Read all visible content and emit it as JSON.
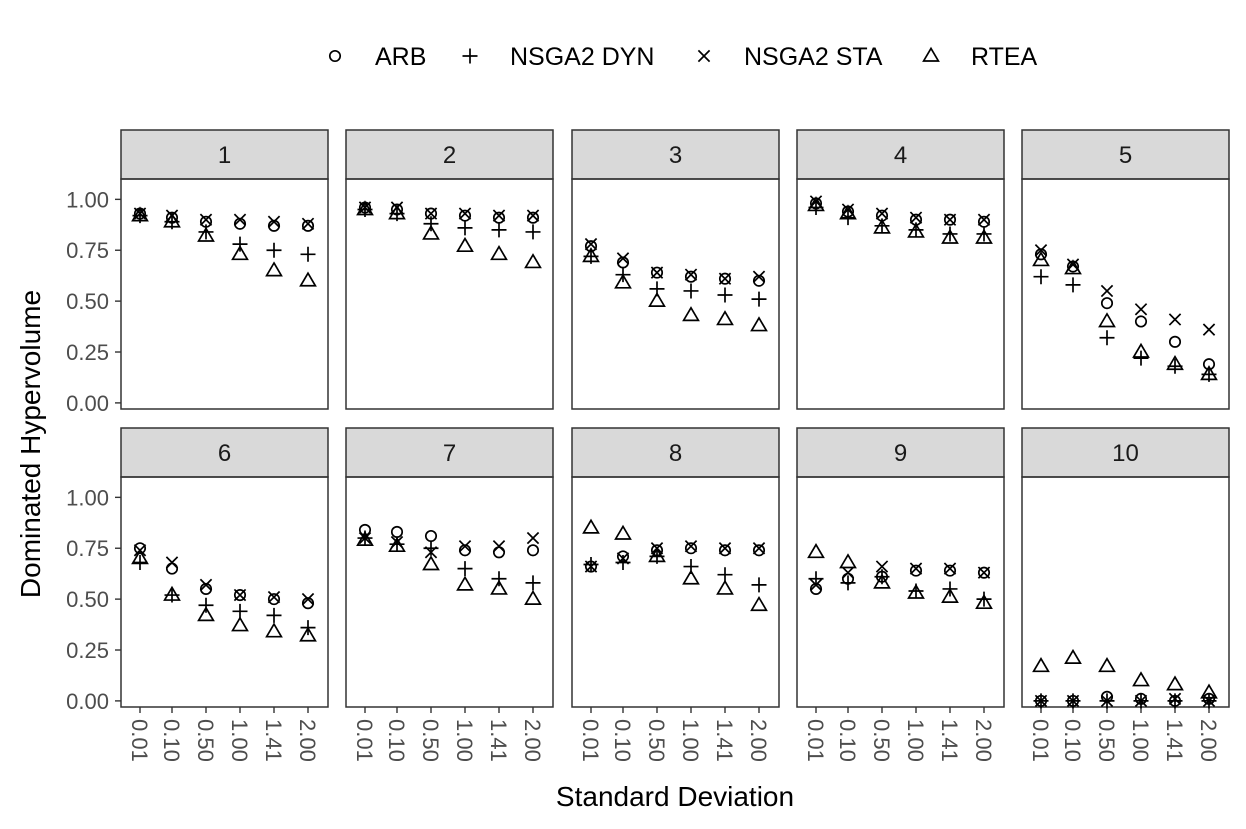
{
  "chart_data": {
    "type": "scatter",
    "facet_type": "small-multiples",
    "xlabel": "Standard Deviation",
    "ylabel": "Dominated Hypervolume",
    "categories": [
      "0.01",
      "0.10",
      "0.50",
      "1.00",
      "1.41",
      "2.00"
    ],
    "ylim": [
      -0.03,
      1.1
    ],
    "yticks": [
      "0.00",
      "0.25",
      "0.50",
      "0.75",
      "1.00"
    ],
    "legend_position": "top",
    "grid": false,
    "legend": [
      {
        "key": "ARB",
        "label": "ARB",
        "marker": "circle"
      },
      {
        "key": "NSGA2_DYN",
        "label": "NSGA2 DYN",
        "marker": "plus"
      },
      {
        "key": "NSGA2_STA",
        "label": "NSGA2 STA",
        "marker": "cross"
      },
      {
        "key": "RTEA",
        "label": "RTEA",
        "marker": "triangle"
      }
    ],
    "panels": [
      {
        "label": "1",
        "series": {
          "ARB": [
            0.93,
            0.91,
            0.89,
            0.88,
            0.87,
            0.87
          ],
          "NSGA2_DYN": [
            0.92,
            0.89,
            0.84,
            0.78,
            0.75,
            0.73
          ],
          "NSGA2_STA": [
            0.93,
            0.92,
            0.9,
            0.9,
            0.89,
            0.88
          ],
          "RTEA": [
            0.92,
            0.89,
            0.82,
            0.73,
            0.65,
            0.6
          ]
        }
      },
      {
        "label": "2",
        "series": {
          "ARB": [
            0.96,
            0.95,
            0.93,
            0.92,
            0.91,
            0.91
          ],
          "NSGA2_DYN": [
            0.95,
            0.93,
            0.88,
            0.86,
            0.85,
            0.84
          ],
          "NSGA2_STA": [
            0.96,
            0.96,
            0.93,
            0.93,
            0.92,
            0.92
          ],
          "RTEA": [
            0.95,
            0.93,
            0.83,
            0.77,
            0.73,
            0.69
          ]
        }
      },
      {
        "label": "3",
        "series": {
          "ARB": [
            0.77,
            0.69,
            0.64,
            0.62,
            0.61,
            0.6
          ],
          "NSGA2_DYN": [
            0.72,
            0.63,
            0.56,
            0.55,
            0.53,
            0.51
          ],
          "NSGA2_STA": [
            0.78,
            0.71,
            0.64,
            0.63,
            0.61,
            0.62
          ],
          "RTEA": [
            0.72,
            0.59,
            0.5,
            0.43,
            0.41,
            0.38
          ]
        }
      },
      {
        "label": "4",
        "series": {
          "ARB": [
            0.98,
            0.94,
            0.92,
            0.9,
            0.9,
            0.89
          ],
          "NSGA2_DYN": [
            0.96,
            0.91,
            0.87,
            0.85,
            0.83,
            0.83
          ],
          "NSGA2_STA": [
            0.99,
            0.95,
            0.93,
            0.91,
            0.9,
            0.9
          ],
          "RTEA": [
            0.97,
            0.93,
            0.86,
            0.84,
            0.81,
            0.81
          ]
        }
      },
      {
        "label": "5",
        "series": {
          "ARB": [
            0.73,
            0.67,
            0.49,
            0.4,
            0.3,
            0.19
          ],
          "NSGA2_DYN": [
            0.62,
            0.58,
            0.32,
            0.22,
            0.18,
            0.14
          ],
          "NSGA2_STA": [
            0.75,
            0.68,
            0.55,
            0.46,
            0.41,
            0.36
          ],
          "RTEA": [
            0.7,
            0.66,
            0.4,
            0.25,
            0.19,
            0.14
          ]
        }
      },
      {
        "label": "6",
        "series": {
          "ARB": [
            0.75,
            0.65,
            0.55,
            0.52,
            0.5,
            0.48
          ],
          "NSGA2_DYN": [
            0.68,
            0.52,
            0.47,
            0.44,
            0.42,
            0.36
          ],
          "NSGA2_STA": [
            0.74,
            0.68,
            0.57,
            0.52,
            0.51,
            0.5
          ],
          "RTEA": [
            0.7,
            0.52,
            0.42,
            0.37,
            0.34,
            0.32
          ]
        }
      },
      {
        "label": "7",
        "series": {
          "ARB": [
            0.84,
            0.83,
            0.81,
            0.74,
            0.73,
            0.74
          ],
          "NSGA2_DYN": [
            0.8,
            0.77,
            0.75,
            0.65,
            0.6,
            0.58
          ],
          "NSGA2_STA": [
            0.8,
            0.78,
            0.73,
            0.76,
            0.76,
            0.8
          ],
          "RTEA": [
            0.79,
            0.76,
            0.67,
            0.57,
            0.55,
            0.5
          ]
        }
      },
      {
        "label": "8",
        "series": {
          "ARB": [
            0.66,
            0.71,
            0.74,
            0.75,
            0.74,
            0.74
          ],
          "NSGA2_DYN": [
            0.67,
            0.68,
            0.71,
            0.66,
            0.62,
            0.57
          ],
          "NSGA2_STA": [
            0.66,
            0.7,
            0.75,
            0.76,
            0.75,
            0.75
          ],
          "RTEA": [
            0.85,
            0.82,
            0.71,
            0.6,
            0.55,
            0.47
          ]
        }
      },
      {
        "label": "9",
        "series": {
          "ARB": [
            0.55,
            0.6,
            0.61,
            0.64,
            0.64,
            0.63
          ],
          "NSGA2_DYN": [
            0.6,
            0.58,
            0.61,
            0.54,
            0.55,
            0.5
          ],
          "NSGA2_STA": [
            0.57,
            0.63,
            0.66,
            0.65,
            0.65,
            0.63
          ],
          "RTEA": [
            0.73,
            0.68,
            0.58,
            0.53,
            0.51,
            0.48
          ]
        }
      },
      {
        "label": "10",
        "series": {
          "ARB": [
            0.0,
            0.0,
            0.02,
            0.01,
            0.0,
            0.01
          ],
          "NSGA2_DYN": [
            0.0,
            0.0,
            0.0,
            0.0,
            0.0,
            0.0
          ],
          "NSGA2_STA": [
            0.0,
            0.0,
            0.0,
            0.0,
            0.01,
            0.0
          ],
          "RTEA": [
            0.17,
            0.21,
            0.17,
            0.1,
            0.08,
            0.04
          ]
        }
      }
    ]
  }
}
